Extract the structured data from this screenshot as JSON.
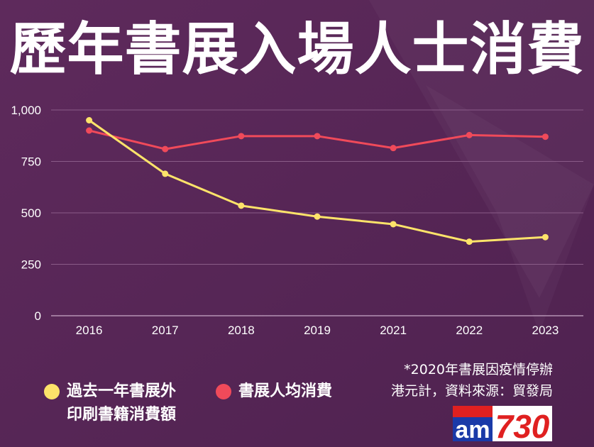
{
  "title": "歷年書展入場人士消費",
  "chart_data": {
    "type": "line",
    "categories": [
      "2016",
      "2017",
      "2018",
      "2019",
      "2021",
      "2022",
      "2023"
    ],
    "yticks": [
      "0",
      "250",
      "500",
      "750",
      "1,000"
    ],
    "ylim": [
      0,
      1000
    ],
    "grid": true,
    "legend_position": "bottom-left",
    "series": [
      {
        "name": "過去一年書展外印刷書籍消費額",
        "color": "#fde36a",
        "values": [
          950,
          690,
          535,
          482,
          445,
          360,
          382
        ]
      },
      {
        "name": "書展人均消費",
        "color": "#f04a5a",
        "values": [
          900,
          810,
          873,
          873,
          815,
          878,
          870
        ]
      }
    ]
  },
  "legend": {
    "series1_line1": "過去一年書展外",
    "series1_line2": "印刷書籍消費額",
    "series2": "書展人均消費"
  },
  "note": {
    "line1": "*2020年書展因疫情停辦",
    "line2": "港元計，資料來源：貿發局"
  },
  "logo": {
    "text_am": "am",
    "text_num": "730",
    "red": "#e02020",
    "blue": "#1a3aa8"
  }
}
